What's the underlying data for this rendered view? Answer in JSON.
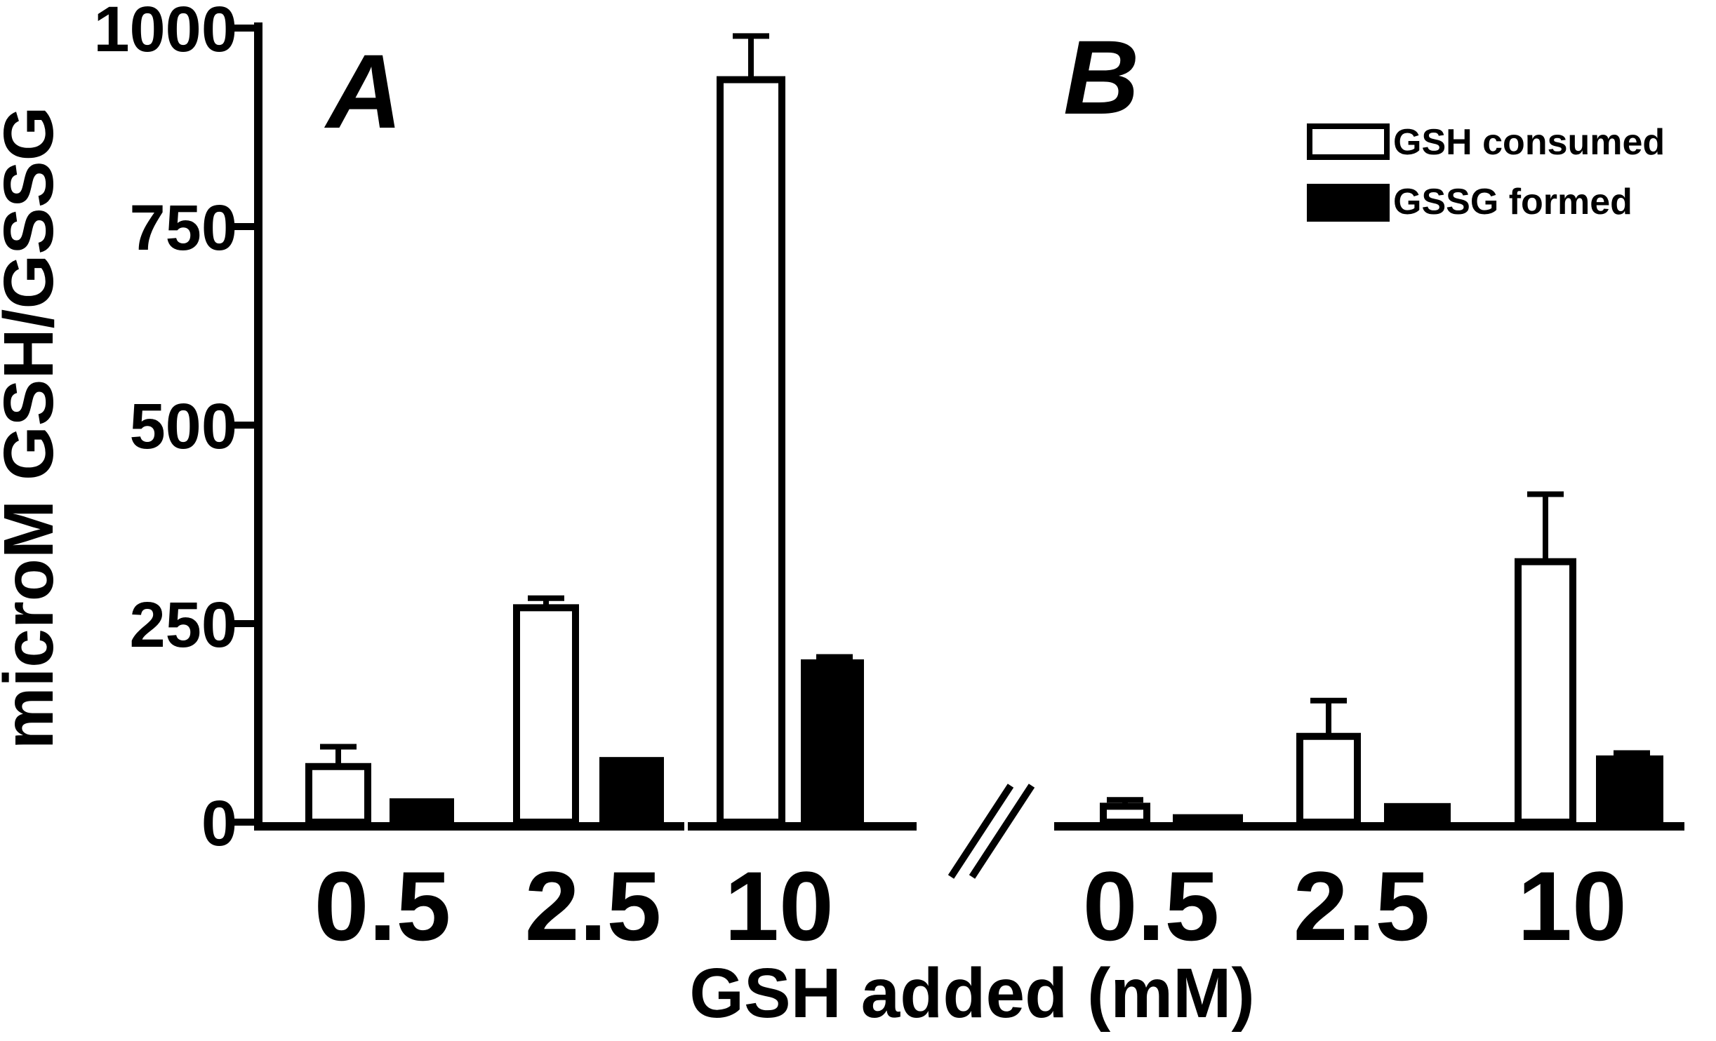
{
  "chart_data": {
    "type": "bar",
    "ylabel": "microM GSH/GSSG",
    "xlabel": "GSH added (mM)",
    "ylim": [
      0,
      1000
    ],
    "yticks": [
      "0",
      "250",
      "500",
      "750",
      "1000"
    ],
    "legend": {
      "placement": "top-right",
      "entries": [
        {
          "name": "GSH consumed",
          "style": "open"
        },
        {
          "name": "GSSG formed",
          "style": "filled"
        }
      ]
    },
    "panels": [
      {
        "label": "A",
        "categories": [
          "0.5",
          "2.5",
          "10"
        ],
        "series": [
          {
            "name": "GSH consumed",
            "values": [
              70,
              270,
              935
            ],
            "errors": [
              25,
              12,
              55
            ]
          },
          {
            "name": "GSSG formed",
            "values": [
              30,
              82,
              205
            ],
            "errors": [
              0,
              0,
              3
            ]
          }
        ]
      },
      {
        "label": "B",
        "categories": [
          "0.5",
          "2.5",
          "10"
        ],
        "series": [
          {
            "name": "GSH consumed",
            "values": [
              20,
              108,
              328
            ],
            "errors": [
              8,
              45,
              85
            ]
          },
          {
            "name": "GSSG formed",
            "values": [
              10,
              24,
              84
            ],
            "errors": [
              0,
              0,
              3
            ]
          }
        ]
      }
    ]
  }
}
